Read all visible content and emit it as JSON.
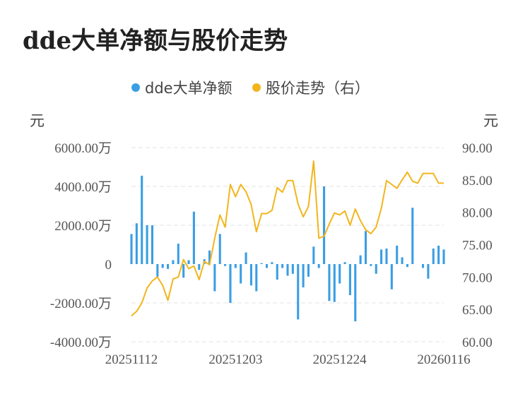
{
  "title": "dde大单净额与股价走势",
  "chart_data": {
    "type": "bar+line",
    "legend": [
      {
        "name": "dde大单净额",
        "color": "#3a9ee4"
      },
      {
        "name": "股价走势（右）",
        "color": "#f2b51c"
      }
    ],
    "left_unit": "元",
    "right_unit": "元",
    "left_axis": {
      "min": -4000,
      "max": 6000,
      "ticks": [
        6000,
        4000,
        2000,
        0,
        -2000,
        -4000
      ],
      "tick_labels": [
        "6000.00万",
        "4000.00万",
        "2000.00万",
        "0",
        "-2000.00万",
        "-4000.00万"
      ]
    },
    "right_axis": {
      "min": 60,
      "max": 90,
      "ticks": [
        90,
        85,
        80,
        75,
        70,
        65,
        60
      ],
      "tick_labels": [
        "90.00",
        "85.00",
        "80.00",
        "75.00",
        "70.00",
        "65.00",
        "60.00"
      ]
    },
    "x_tick_labels": [
      {
        "index": 0,
        "label": "20251112"
      },
      {
        "index": 20,
        "label": "20251203"
      },
      {
        "index": 40,
        "label": "20251224"
      },
      {
        "index": 60,
        "label": "20260116"
      }
    ],
    "grid": "horizontal-dashed",
    "legend_position": "top",
    "bars": [
      1550,
      2100,
      4550,
      2000,
      2000,
      -650,
      -200,
      -250,
      200,
      1050,
      -700,
      200,
      2700,
      -300,
      250,
      700,
      -1400,
      1550,
      -100,
      -2000,
      -200,
      -1000,
      600,
      -1100,
      -1400,
      50,
      -200,
      100,
      -800,
      -200,
      -600,
      -500,
      -2850,
      -1200,
      -650,
      900,
      -200,
      4000,
      -1900,
      -1950,
      -1000,
      100,
      -1600,
      -2950,
      450,
      1700,
      -100,
      -500,
      750,
      800,
      -1300,
      950,
      350,
      -150,
      2900,
      0,
      -200,
      -750,
      800,
      950,
      750
    ],
    "price": [
      64.0,
      64.7,
      66.0,
      68.3,
      69.4,
      70.0,
      68.7,
      66.4,
      69.7,
      70.0,
      72.7,
      71.3,
      71.7,
      69.6,
      72.4,
      71.9,
      76.0,
      79.6,
      77.7,
      84.3,
      82.4,
      84.3,
      83.2,
      81.2,
      77.0,
      79.8,
      79.8,
      80.3,
      83.8,
      83.1,
      84.9,
      84.9,
      81.3,
      79.3,
      80.9,
      87.9,
      76.0,
      76.3,
      78.2,
      79.9,
      79.6,
      80.2,
      78.0,
      80.5,
      78.7,
      77.3,
      76.7,
      77.7,
      80.6,
      84.9,
      84.3,
      83.7,
      85.0,
      86.2,
      84.8,
      84.5,
      86.0,
      86.0,
      86.0,
      84.5,
      84.5
    ]
  }
}
